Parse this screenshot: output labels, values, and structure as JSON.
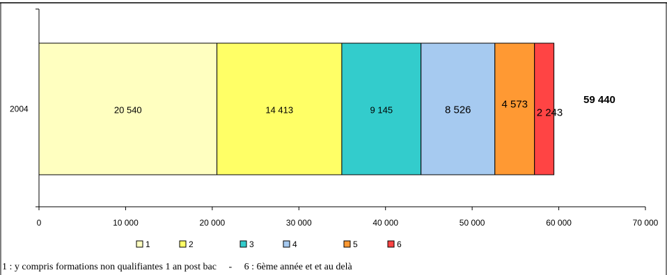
{
  "chart_data": {
    "type": "bar",
    "orientation": "horizontal",
    "stacked": true,
    "categories": [
      "2004"
    ],
    "series": [
      {
        "name": "1",
        "values": [
          20540
        ],
        "label": "20 540",
        "color": "#ffffc0"
      },
      {
        "name": "2",
        "values": [
          14413
        ],
        "label": "14 413",
        "color": "#ffff66"
      },
      {
        "name": "3",
        "values": [
          9145
        ],
        "label": "9 145",
        "color": "#33cccc"
      },
      {
        "name": "4",
        "values": [
          8526
        ],
        "label": "8 526",
        "color": "#a6caf0"
      },
      {
        "name": "5",
        "values": [
          4573
        ],
        "label": "4 573",
        "color": "#ff9933"
      },
      {
        "name": "6",
        "values": [
          2243
        ],
        "label": "2 243",
        "color": "#ff4444"
      }
    ],
    "total": {
      "value": 59440,
      "label": "59 440"
    },
    "xlim": [
      0,
      70000
    ],
    "xticks": [
      {
        "value": 0,
        "label": "0"
      },
      {
        "value": 10000,
        "label": "10 000"
      },
      {
        "value": 20000,
        "label": "20 000"
      },
      {
        "value": 30000,
        "label": "30 000"
      },
      {
        "value": 40000,
        "label": "40 000"
      },
      {
        "value": 50000,
        "label": "50 000"
      },
      {
        "value": 60000,
        "label": "60 000"
      },
      {
        "value": 70000,
        "label": "70 000"
      }
    ],
    "grid": false,
    "legend_position": "bottom"
  },
  "footnote": "1 : y compris formations non qualifiantes 1 an post bac     -     6 : 6ème année et et au delà"
}
